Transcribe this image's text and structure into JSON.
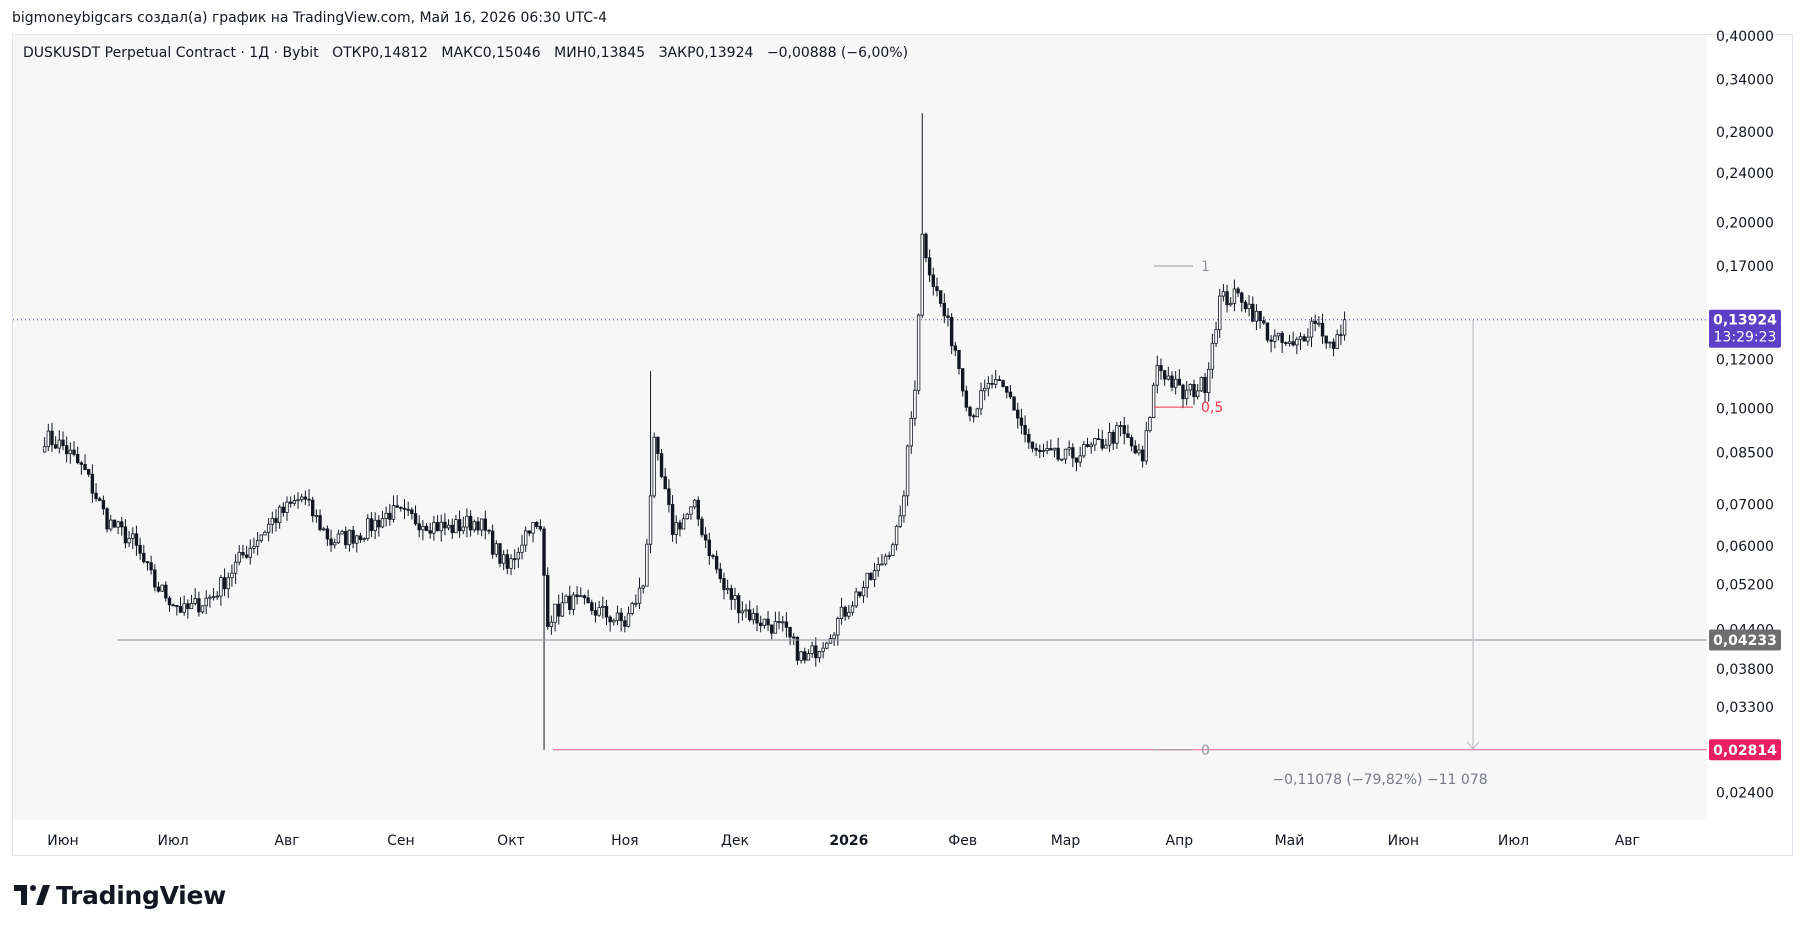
{
  "caption": "bigmoneybigcars создал(а) график на TradingView.com, Май 16, 2026 06:30 UTC-4",
  "legend": {
    "symbol": "DUSKUSDT Perpetual Contract · 1Д · Bybit",
    "open": "ОТКР0,14812",
    "high": "МАКС0,15046",
    "low": "МИН0,13845",
    "close": "ЗАКР0,13924",
    "change": "−0,00888 (−6,00%)"
  },
  "logo_text": "TradingView",
  "colors": {
    "candle": "#131722",
    "current_price_bg": "#5b3fc4",
    "support_bg": "#6e6e6e",
    "low_bg": "#e91e63",
    "fib_red": "#f23645",
    "fib_gray": "#9598a1",
    "plot_bg": "#f7f7f7",
    "axis_text": "#131722"
  },
  "chart_data": {
    "type": "candlestick",
    "symbol": "DUSKUSDT",
    "scale": "log",
    "y_ticks": [
      "0,40000",
      "0,34000",
      "0,28000",
      "0,24000",
      "0,20000",
      "0,17000",
      "0,12000",
      "0,10000",
      "0,08500",
      "0,07000",
      "0,06000",
      "0,05200",
      "0,04400",
      "0,03800",
      "0,03300",
      "0,02400"
    ],
    "x_ticks": [
      "Июн",
      "Июл",
      "Авг",
      "Сен",
      "Окт",
      "Ноя",
      "Дек",
      "2026",
      "Фев",
      "Мар",
      "Апр",
      "Май",
      "Июн",
      "Июл",
      "Авг"
    ],
    "price_series": [
      {
        "date": "2025-05-27",
        "price": 0.09
      },
      {
        "date": "2025-06-01",
        "price": 0.087
      },
      {
        "date": "2025-06-07",
        "price": 0.079
      },
      {
        "date": "2025-06-13",
        "price": 0.066
      },
      {
        "date": "2025-06-20",
        "price": 0.061
      },
      {
        "date": "2025-06-26",
        "price": 0.052
      },
      {
        "date": "2025-07-04",
        "price": 0.047
      },
      {
        "date": "2025-07-12",
        "price": 0.05
      },
      {
        "date": "2025-07-20",
        "price": 0.058
      },
      {
        "date": "2025-07-28",
        "price": 0.066
      },
      {
        "date": "2025-08-05",
        "price": 0.072
      },
      {
        "date": "2025-08-13",
        "price": 0.061
      },
      {
        "date": "2025-08-21",
        "price": 0.063
      },
      {
        "date": "2025-08-29",
        "price": 0.068
      },
      {
        "date": "2025-09-06",
        "price": 0.066
      },
      {
        "date": "2025-09-14",
        "price": 0.064
      },
      {
        "date": "2025-09-22",
        "price": 0.066
      },
      {
        "date": "2025-09-30",
        "price": 0.055
      },
      {
        "date": "2025-10-06",
        "price": 0.065
      },
      {
        "date": "2025-10-09",
        "price": 0.063
      },
      {
        "date": "2025-10-11",
        "price": 0.046
      },
      {
        "date": "2025-10-17",
        "price": 0.049
      },
      {
        "date": "2025-10-25",
        "price": 0.047
      },
      {
        "date": "2025-11-01",
        "price": 0.045
      },
      {
        "date": "2025-11-06",
        "price": 0.052
      },
      {
        "date": "2025-11-09",
        "price": 0.087
      },
      {
        "date": "2025-11-14",
        "price": 0.064
      },
      {
        "date": "2025-11-20",
        "price": 0.069
      },
      {
        "date": "2025-11-28",
        "price": 0.051
      },
      {
        "date": "2025-12-06",
        "price": 0.046
      },
      {
        "date": "2025-12-14",
        "price": 0.044
      },
      {
        "date": "2025-12-20",
        "price": 0.039
      },
      {
        "date": "2025-12-26",
        "price": 0.043
      },
      {
        "date": "2026-01-03",
        "price": 0.05
      },
      {
        "date": "2026-01-09",
        "price": 0.055
      },
      {
        "date": "2026-01-15",
        "price": 0.065
      },
      {
        "date": "2026-01-19",
        "price": 0.11
      },
      {
        "date": "2026-01-21",
        "price": 0.19
      },
      {
        "date": "2026-01-24",
        "price": 0.16
      },
      {
        "date": "2026-01-30",
        "price": 0.125
      },
      {
        "date": "2026-02-03",
        "price": 0.098
      },
      {
        "date": "2026-02-09",
        "price": 0.11
      },
      {
        "date": "2026-02-14",
        "price": 0.104
      },
      {
        "date": "2026-02-20",
        "price": 0.085
      },
      {
        "date": "2026-02-28",
        "price": 0.083
      },
      {
        "date": "2026-03-08",
        "price": 0.086
      },
      {
        "date": "2026-03-16",
        "price": 0.092
      },
      {
        "date": "2026-03-22",
        "price": 0.082
      },
      {
        "date": "2026-03-26",
        "price": 0.118
      },
      {
        "date": "2026-04-02",
        "price": 0.105
      },
      {
        "date": "2026-04-08",
        "price": 0.11
      },
      {
        "date": "2026-04-12",
        "price": 0.15
      },
      {
        "date": "2026-04-18",
        "price": 0.152
      },
      {
        "date": "2026-04-26",
        "price": 0.13
      },
      {
        "date": "2026-05-02",
        "price": 0.125
      },
      {
        "date": "2026-05-08",
        "price": 0.14
      },
      {
        "date": "2026-05-13",
        "price": 0.124
      },
      {
        "date": "2026-05-16",
        "price": 0.13924
      }
    ],
    "horizontal_lines": [
      {
        "price": 0.13924,
        "style": "dotted",
        "label": "0,13924",
        "sublabel": "13:29:23"
      },
      {
        "price": 0.04233,
        "label": "0,04233"
      },
      {
        "price": 0.02814,
        "label": "0,02814"
      }
    ],
    "fib_levels": [
      {
        "level": "1",
        "price": 0.17
      },
      {
        "level": "0,5",
        "price": 0.1006
      },
      {
        "level": "0",
        "price": 0.02814
      }
    ],
    "measure_text": "−0,11078 (−79,82%) −11 078"
  }
}
